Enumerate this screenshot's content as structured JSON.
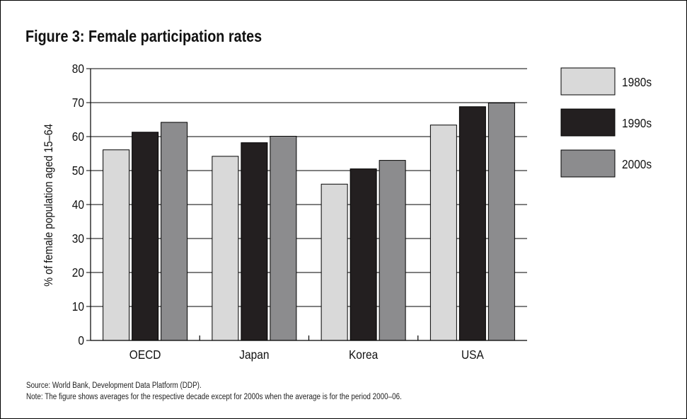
{
  "chart_data": {
    "type": "bar",
    "title": "Figure 3: Female participation rates",
    "xlabel": "",
    "ylabel": "% of female population aged 15–64",
    "categories": [
      "OECD",
      "Japan",
      "Korea",
      "USA"
    ],
    "series": [
      {
        "name": "1980s",
        "color": "#d9d9d9",
        "values": [
          56.1,
          54.2,
          46.0,
          63.4
        ]
      },
      {
        "name": "1990s",
        "color": "#231f20",
        "values": [
          61.3,
          58.2,
          50.5,
          68.8
        ]
      },
      {
        "name": "2000s",
        "color": "#8c8c8e",
        "values": [
          64.2,
          60.1,
          53.0,
          69.9
        ]
      }
    ],
    "ylim": [
      0,
      80
    ],
    "yticks": [
      "0",
      "10",
      "20",
      "30",
      "40",
      "50",
      "60",
      "70",
      "80"
    ],
    "grid": true,
    "legend_position": "right"
  },
  "notes": {
    "source": "Source: World Bank, Development Data Platform (DDP).",
    "note": "Note: The figure shows averages for the respective decade except for 2000s when the average is for the period 2000–06."
  }
}
